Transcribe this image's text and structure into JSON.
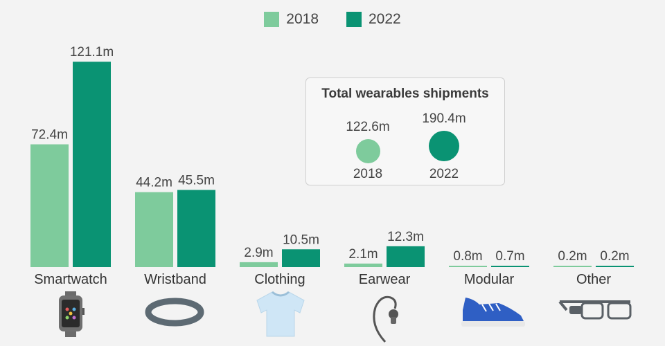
{
  "legend": {
    "items": [
      {
        "label": "2018",
        "color": "#7ecb9c"
      },
      {
        "label": "2022",
        "color": "#0a9373"
      }
    ]
  },
  "totals": {
    "title": "Total wearables shipments",
    "items": [
      {
        "year": "2018",
        "value": "122.6m",
        "color": "#7ecb9c"
      },
      {
        "year": "2022",
        "value": "190.4m",
        "color": "#0a9373"
      }
    ]
  },
  "chart_data": {
    "type": "bar",
    "title": "",
    "xlabel": "",
    "ylabel": "",
    "unit": "m",
    "ylim": [
      0,
      130
    ],
    "grid": false,
    "legend_position": "top-center",
    "categories": [
      "Smartwatch",
      "Wristband",
      "Clothing",
      "Earwear",
      "Modular",
      "Other"
    ],
    "category_icons": [
      "smartwatch-icon",
      "wristband-icon",
      "t-shirt-icon",
      "earpiece-icon",
      "sneaker-icon",
      "smart-glasses-icon"
    ],
    "series": [
      {
        "name": "2018",
        "color": "#7ecb9c",
        "values": [
          72.4,
          44.2,
          2.9,
          2.1,
          0.8,
          0.2
        ],
        "labels": [
          "72.4m",
          "44.2m",
          "2.9m",
          "2.1m",
          "0.8m",
          "0.2m"
        ]
      },
      {
        "name": "2022",
        "color": "#0a9373",
        "values": [
          121.1,
          45.5,
          10.5,
          12.3,
          0.7,
          0.2
        ],
        "labels": [
          "121.1m",
          "45.5m",
          "10.5m",
          "12.3m",
          "0.7m",
          "0.2m"
        ]
      }
    ]
  }
}
